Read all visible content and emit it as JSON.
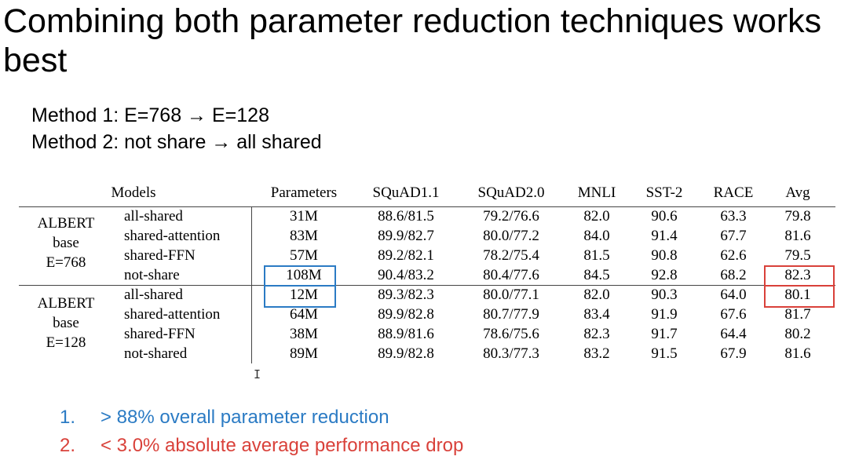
{
  "title": "Combining both parameter reduction techniques works best",
  "methods": [
    "Method 1: E=768 → E=128",
    "Method 2: not share → all shared"
  ],
  "table": {
    "headers": [
      "Models",
      "Parameters",
      "SQuAD1.1",
      "SQuAD2.0",
      "MNLI",
      "SST-2",
      "RACE",
      "Avg"
    ],
    "groups": [
      {
        "label": [
          "ALBERT",
          "base",
          "E=768"
        ],
        "rows": [
          [
            "all-shared",
            "31M",
            "88.6/81.5",
            "79.2/76.6",
            "82.0",
            "90.6",
            "63.3",
            "79.8"
          ],
          [
            "shared-attention",
            "83M",
            "89.9/82.7",
            "80.0/77.2",
            "84.0",
            "91.4",
            "67.7",
            "81.6"
          ],
          [
            "shared-FFN",
            "57M",
            "89.2/82.1",
            "78.2/75.4",
            "81.5",
            "90.8",
            "62.6",
            "79.5"
          ],
          [
            "not-share",
            "108M",
            "90.4/83.2",
            "80.4/77.6",
            "84.5",
            "92.8",
            "68.2",
            "82.3"
          ]
        ]
      },
      {
        "label": [
          "ALBERT",
          "base",
          "E=128"
        ],
        "rows": [
          [
            "all-shared",
            "12M",
            "89.3/82.3",
            "80.0/77.1",
            "82.0",
            "90.3",
            "64.0",
            "80.1"
          ],
          [
            "shared-attention",
            "64M",
            "89.9/82.8",
            "80.7/77.9",
            "83.4",
            "91.9",
            "67.6",
            "81.7"
          ],
          [
            "shared-FFN",
            "38M",
            "88.9/81.6",
            "78.6/75.6",
            "82.3",
            "91.7",
            "64.4",
            "80.2"
          ],
          [
            "not-shared",
            "89M",
            "89.9/82.8",
            "80.3/77.3",
            "83.2",
            "91.5",
            "67.9",
            "81.6"
          ]
        ]
      }
    ]
  },
  "highlight_colors": {
    "params": "#2b7bc4",
    "avg": "#d9413a"
  },
  "cursor_glyph": "I",
  "points": [
    {
      "num": "1.",
      "text": "> 88% overall parameter reduction",
      "color": "#2b7bc4"
    },
    {
      "num": "2.",
      "text": "< 3.0% absolute average performance drop",
      "color": "#d9413a"
    }
  ]
}
